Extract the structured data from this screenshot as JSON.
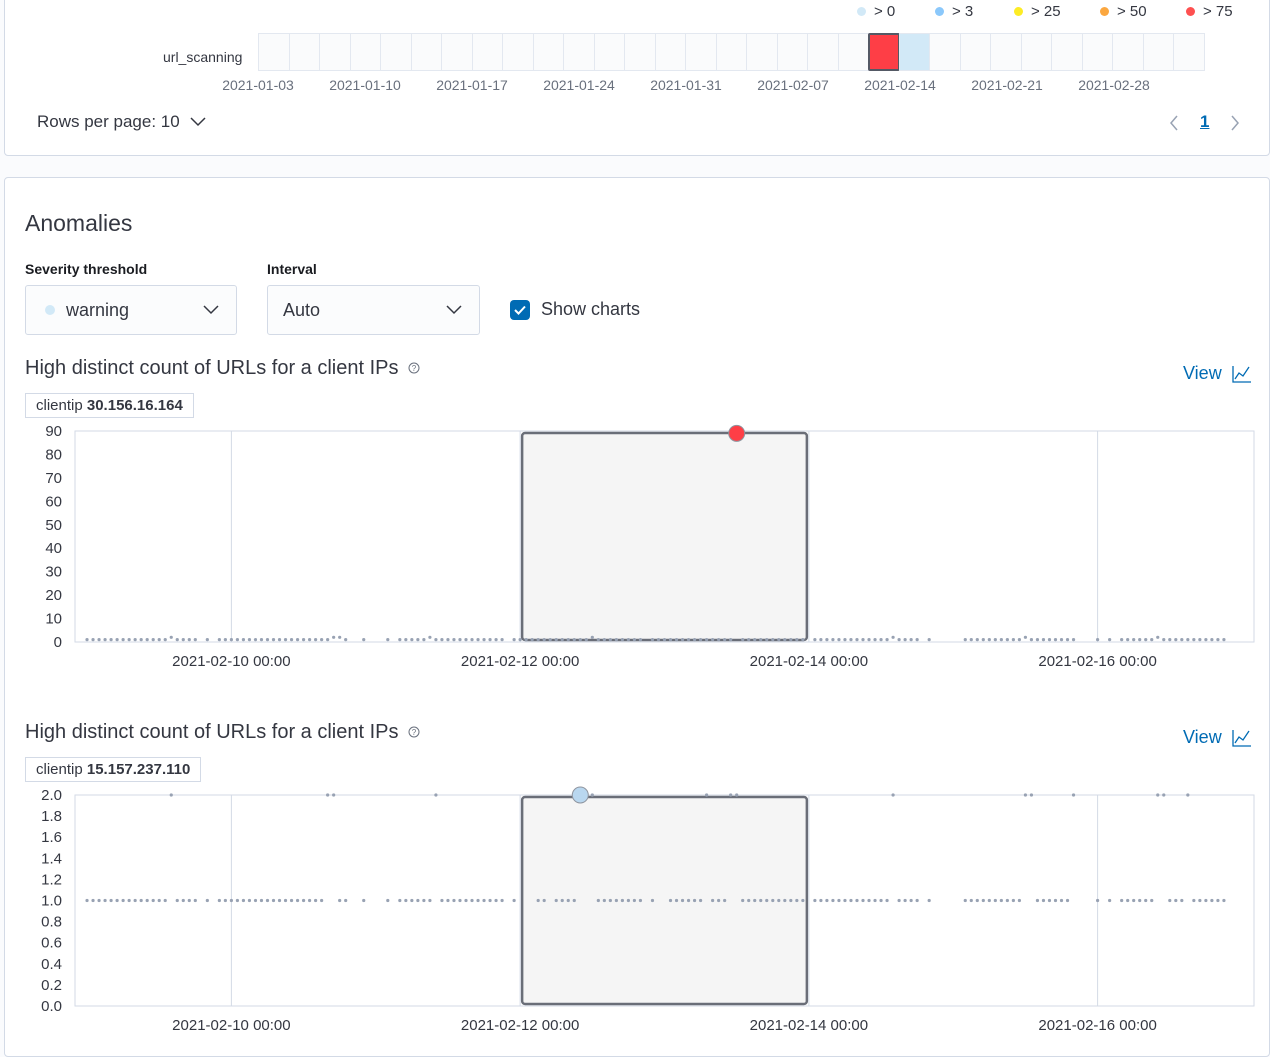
{
  "swimlane": {
    "legend": [
      {
        "label": "> 0",
        "color": "#d2e9f7"
      },
      {
        "label": "> 3",
        "color": "#8bc8fb"
      },
      {
        "label": "> 25",
        "color": "#fdec25"
      },
      {
        "label": "> 50",
        "color": "#fba740"
      },
      {
        "label": "> 75",
        "color": "#fe5050"
      }
    ],
    "row_label": "url_scanning",
    "x_labels": [
      "2021-01-03",
      "2021-01-10",
      "2021-01-17",
      "2021-01-24",
      "2021-01-31",
      "2021-02-07",
      "2021-02-14",
      "2021-02-21",
      "2021-02-28"
    ],
    "cells": [
      {
        "index": 20,
        "severity": "> 75",
        "color": "#fe3e46",
        "selected": true
      },
      {
        "index": 21,
        "severity": "> 0",
        "color": "#d2e9f7"
      }
    ],
    "rows_per_page": "Rows per page: 10",
    "current_page": "1"
  },
  "anomalies": {
    "title": "Anomalies",
    "severity_label": "Severity threshold",
    "severity_value": "warning",
    "severity_color": "#d2e9f7",
    "interval_label": "Interval",
    "interval_value": "Auto",
    "show_charts_label": "Show charts",
    "show_charts_checked": true
  },
  "chart_data": [
    {
      "type": "scatter",
      "title": "High distinct count of URLs for a client IPs",
      "entity_label": "clientip",
      "entity_value": "30.156.16.164",
      "view_label": "View",
      "ylim": [
        0,
        90
      ],
      "yticks": [
        "0",
        "10",
        "20",
        "30",
        "40",
        "50",
        "60",
        "70",
        "80",
        "90"
      ],
      "xlim": [
        "2021-02-08 22:00",
        "2021-02-17 02:00"
      ],
      "xticks": [
        "2021-02-10 00:00",
        "2021-02-12 00:00",
        "2021-02-14 00:00",
        "2021-02-16 00:00"
      ],
      "highlight": [
        "2021-02-12 00:00",
        "2021-02-14 00:00"
      ],
      "hourly_segments": [
        [
          "2021-02-09 00:00",
          "2021-02-09 18:00",
          1
        ],
        [
          "2021-02-09 20:00",
          "2021-02-09 20:00",
          1
        ],
        [
          "2021-02-09 22:00",
          "2021-02-10 19:00",
          1
        ],
        [
          "2021-02-10 22:00",
          "2021-02-10 22:00",
          1
        ],
        [
          "2021-02-11 02:00",
          "2021-02-11 02:00",
          1
        ],
        [
          "2021-02-11 04:00",
          "2021-02-11 21:00",
          1
        ],
        [
          "2021-02-11 23:00",
          "2021-02-11 23:00",
          1
        ],
        [
          "2021-02-12 00:00",
          "2021-02-12 20:00",
          1
        ],
        [
          "2021-02-12 22:00",
          "2021-02-13 23:00",
          1
        ],
        [
          "2021-02-14 01:00",
          "2021-02-14 18:00",
          1
        ],
        [
          "2021-02-14 20:00",
          "2021-02-14 20:00",
          1
        ],
        [
          "2021-02-15 02:00",
          "2021-02-15 20:00",
          1
        ],
        [
          "2021-02-16 00:00",
          "2021-02-16 00:00",
          1
        ],
        [
          "2021-02-16 02:00",
          "2021-02-16 02:00",
          1
        ],
        [
          "2021-02-16 04:00",
          "2021-02-16 21:00",
          1
        ]
      ],
      "points": [
        [
          "2021-02-09 14:00",
          2
        ],
        [
          "2021-02-10 17:00",
          2
        ],
        [
          "2021-02-10 18:00",
          2
        ],
        [
          "2021-02-11 09:00",
          2
        ],
        [
          "2021-02-12 12:00",
          2
        ],
        [
          "2021-02-13 12:00",
          2
        ],
        [
          "2021-02-14 14:00",
          2
        ],
        [
          "2021-02-15 12:00",
          2
        ],
        [
          "2021-02-16 10:00",
          2
        ]
      ],
      "anomaly": {
        "x": "2021-02-13 12:00",
        "y": 89,
        "color": "#fe3e46"
      }
    },
    {
      "type": "scatter",
      "title": "High distinct count of URLs for a client IPs",
      "entity_label": "clientip",
      "entity_value": "15.157.237.110",
      "view_label": "View",
      "ylim": [
        0,
        2
      ],
      "yticks": [
        "0.0",
        "0.2",
        "0.4",
        "0.6",
        "0.8",
        "1.0",
        "1.2",
        "1.4",
        "1.6",
        "1.8",
        "2.0"
      ],
      "xlim": [
        "2021-02-08 22:00",
        "2021-02-17 02:00"
      ],
      "xticks": [
        "2021-02-10 00:00",
        "2021-02-12 00:00",
        "2021-02-14 00:00",
        "2021-02-16 00:00"
      ],
      "highlight": [
        "2021-02-12 00:00",
        "2021-02-14 00:00"
      ],
      "hourly_segments": [
        [
          "2021-02-09 00:00",
          "2021-02-09 18:00",
          1
        ],
        [
          "2021-02-09 20:00",
          "2021-02-09 20:00",
          1
        ],
        [
          "2021-02-09 22:00",
          "2021-02-10 19:00",
          1
        ],
        [
          "2021-02-10 22:00",
          "2021-02-10 22:00",
          1
        ],
        [
          "2021-02-11 02:00",
          "2021-02-11 02:00",
          1
        ],
        [
          "2021-02-11 04:00",
          "2021-02-11 21:00",
          1
        ],
        [
          "2021-02-11 23:00",
          "2021-02-11 23:00",
          1
        ],
        [
          "2021-02-12 03:00",
          "2021-02-12 04:00",
          1
        ],
        [
          "2021-02-12 06:00",
          "2021-02-12 20:00",
          1
        ],
        [
          "2021-02-12 22:00",
          "2021-02-12 22:00",
          1
        ],
        [
          "2021-02-13 01:00",
          "2021-02-13 23:00",
          1
        ],
        [
          "2021-02-14 01:00",
          "2021-02-14 18:00",
          1
        ],
        [
          "2021-02-14 20:00",
          "2021-02-14 20:00",
          1
        ],
        [
          "2021-02-15 02:00",
          "2021-02-15 20:00",
          1
        ],
        [
          "2021-02-16 00:00",
          "2021-02-16 00:00",
          1
        ],
        [
          "2021-02-16 02:00",
          "2021-02-16 02:00",
          1
        ],
        [
          "2021-02-16 04:00",
          "2021-02-16 21:00",
          1
        ]
      ],
      "points": [
        [
          "2021-02-09 14:00",
          2
        ],
        [
          "2021-02-10 16:00",
          2
        ],
        [
          "2021-02-10 17:00",
          2
        ],
        [
          "2021-02-11 10:00",
          2
        ],
        [
          "2021-02-12 11:00",
          2
        ],
        [
          "2021-02-12 12:00",
          2
        ],
        [
          "2021-02-13 07:00",
          2
        ],
        [
          "2021-02-13 11:00",
          2
        ],
        [
          "2021-02-13 12:00",
          2
        ],
        [
          "2021-02-14 14:00",
          2
        ],
        [
          "2021-02-15 12:00",
          2
        ],
        [
          "2021-02-15 13:00",
          2
        ],
        [
          "2021-02-15 20:00",
          2
        ],
        [
          "2021-02-16 10:00",
          2
        ],
        [
          "2021-02-16 11:00",
          2
        ],
        [
          "2021-02-16 15:00",
          2
        ]
      ],
      "anomaly": {
        "x": "2021-02-12 10:00",
        "y": 2,
        "color": "#b9d7ef"
      }
    }
  ]
}
